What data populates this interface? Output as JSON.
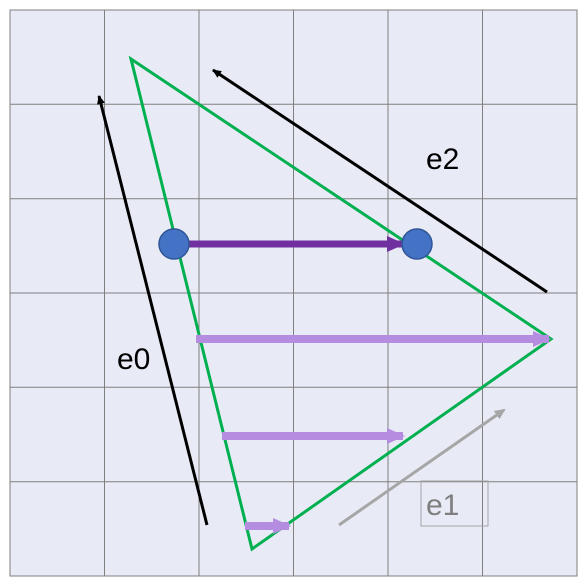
{
  "labels": {
    "e0": "e0",
    "e1": "e1",
    "e2": "e2"
  },
  "colors": {
    "background": "#e8ebf5",
    "grid": "#7f7f7f",
    "triangle": "#00b050",
    "edge_vector": "#000000",
    "e1_vector": "#a6a6a6",
    "scanline_light": "#b48de0",
    "scanline_dark": "#7030a0",
    "point_fill": "#4472c4",
    "point_stroke": "#2f5597",
    "label_text": "#000000",
    "e1_text": "#7f7f7f"
  }
}
